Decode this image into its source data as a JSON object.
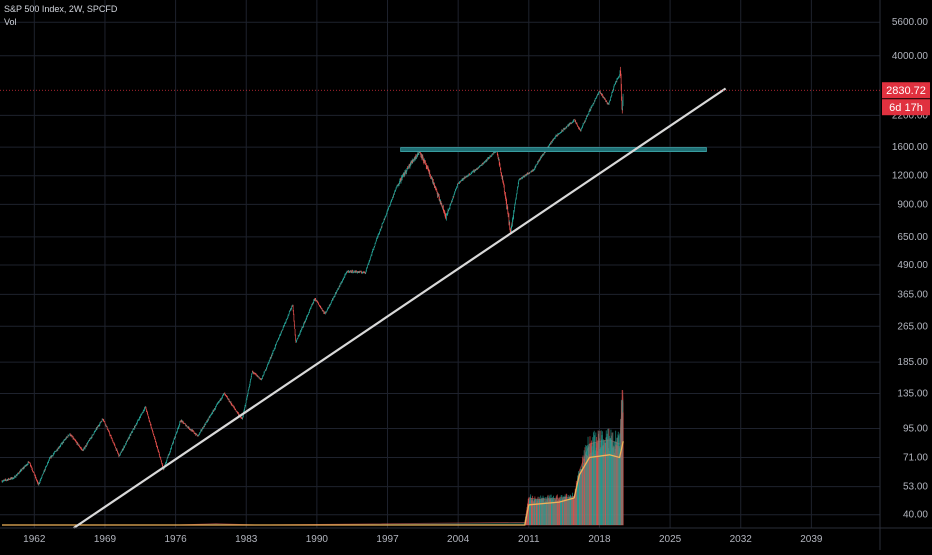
{
  "legend": {
    "title": "S&P 500 Index, 2W, SPCFD",
    "volume_label": "Vol"
  },
  "price_badge": {
    "value": "2830.72",
    "countdown": "6d 17h",
    "color": "#e0313f"
  },
  "colors": {
    "background": "#000000",
    "grid": "#1e222d",
    "up": "#26a69a",
    "down": "#ef5350",
    "trendline": "#d9d9d9",
    "horizontal_level": "#1f6f74",
    "volume_ma": "#f0b35a"
  },
  "chart_data": {
    "type": "candlestick",
    "title": "S&P 500 Index, 2W, SPCFD",
    "y_scale": "log",
    "y_ticks": [
      5600,
      4000,
      2830.72,
      2200,
      1600,
      1200,
      900,
      650,
      490,
      365,
      265,
      185,
      135,
      95,
      71,
      53,
      40
    ],
    "y_tick_labels": [
      "5600.00",
      "4000.00",
      "2830.72",
      "2200.00",
      "1600.00",
      "1200.00",
      "900.00",
      "650.00",
      "490.00",
      "365.00",
      "265.00",
      "185.00",
      "135.00",
      "95.00",
      "71.00",
      "53.00",
      "40.00"
    ],
    "x_ticks": [
      1962,
      1969,
      1976,
      1983,
      1990,
      1997,
      2004,
      2011,
      2018,
      2025,
      2032,
      2039
    ],
    "x_range": [
      1958.6,
      2045.8
    ],
    "y_range": [
      35,
      7000
    ],
    "grid": true,
    "price_path": [
      [
        1958.8,
        56
      ],
      [
        1960,
        58
      ],
      [
        1961.5,
        68
      ],
      [
        1962.4,
        54
      ],
      [
        1963.5,
        70
      ],
      [
        1965.5,
        90
      ],
      [
        1966.8,
        76
      ],
      [
        1968.8,
        105
      ],
      [
        1970.4,
        72
      ],
      [
        1973,
        118
      ],
      [
        1974.8,
        63
      ],
      [
        1976.5,
        103
      ],
      [
        1978.2,
        88
      ],
      [
        1980.8,
        135
      ],
      [
        1982.6,
        104
      ],
      [
        1983.6,
        168
      ],
      [
        1984.5,
        155
      ],
      [
        1987.6,
        330
      ],
      [
        1987.9,
        225
      ],
      [
        1989.8,
        350
      ],
      [
        1990.8,
        300
      ],
      [
        1993,
        460
      ],
      [
        1994.8,
        455
      ],
      [
        1996,
        650
      ],
      [
        1998,
        1100
      ],
      [
        1999.5,
        1400
      ],
      [
        2000.2,
        1530
      ],
      [
        2001.5,
        1130
      ],
      [
        2002.8,
        790
      ],
      [
        2004,
        1120
      ],
      [
        2006,
        1300
      ],
      [
        2007.8,
        1550
      ],
      [
        2008.5,
        1100
      ],
      [
        2009.2,
        680
      ],
      [
        2010,
        1150
      ],
      [
        2011.5,
        1280
      ],
      [
        2012,
        1400
      ],
      [
        2013.5,
        1750
      ],
      [
        2015.5,
        2100
      ],
      [
        2016.1,
        1880
      ],
      [
        2017,
        2300
      ],
      [
        2018,
        2800
      ],
      [
        2018.9,
        2450
      ],
      [
        2019.5,
        3000
      ],
      [
        2020.1,
        3380
      ],
      [
        2020.25,
        2250
      ],
      [
        2020.35,
        2830.72
      ]
    ],
    "horizontal_level": {
      "value": 1560,
      "x_start": 1998.3,
      "x_end": 2028.6
    },
    "trendline": {
      "start": [
        1965.9,
        35
      ],
      "end": [
        2030.5,
        2880
      ]
    },
    "volume": {
      "label": "Vol",
      "path": [
        [
          1958.8,
          0.0
        ],
        [
          1976,
          0.0
        ],
        [
          1980,
          0.01
        ],
        [
          1984,
          0.0
        ],
        [
          2010.6,
          0.02
        ],
        [
          2011,
          0.2
        ],
        [
          2012,
          0.19
        ],
        [
          2014,
          0.2
        ],
        [
          2015.5,
          0.21
        ],
        [
          2016,
          0.4
        ],
        [
          2017,
          0.6
        ],
        [
          2018,
          0.62
        ],
        [
          2019,
          0.63
        ],
        [
          2020,
          0.6
        ],
        [
          2020.2,
          0.85
        ],
        [
          2020.3,
          1.0
        ],
        [
          2020.35,
          0.9
        ]
      ],
      "ma_path": [
        [
          1958.8,
          0.0
        ],
        [
          2010.6,
          0.0
        ],
        [
          2011,
          0.15
        ],
        [
          2014,
          0.17
        ],
        [
          2015.5,
          0.2
        ],
        [
          2016,
          0.37
        ],
        [
          2017,
          0.5
        ],
        [
          2019,
          0.52
        ],
        [
          2020,
          0.5
        ],
        [
          2020.35,
          0.62
        ]
      ]
    }
  }
}
